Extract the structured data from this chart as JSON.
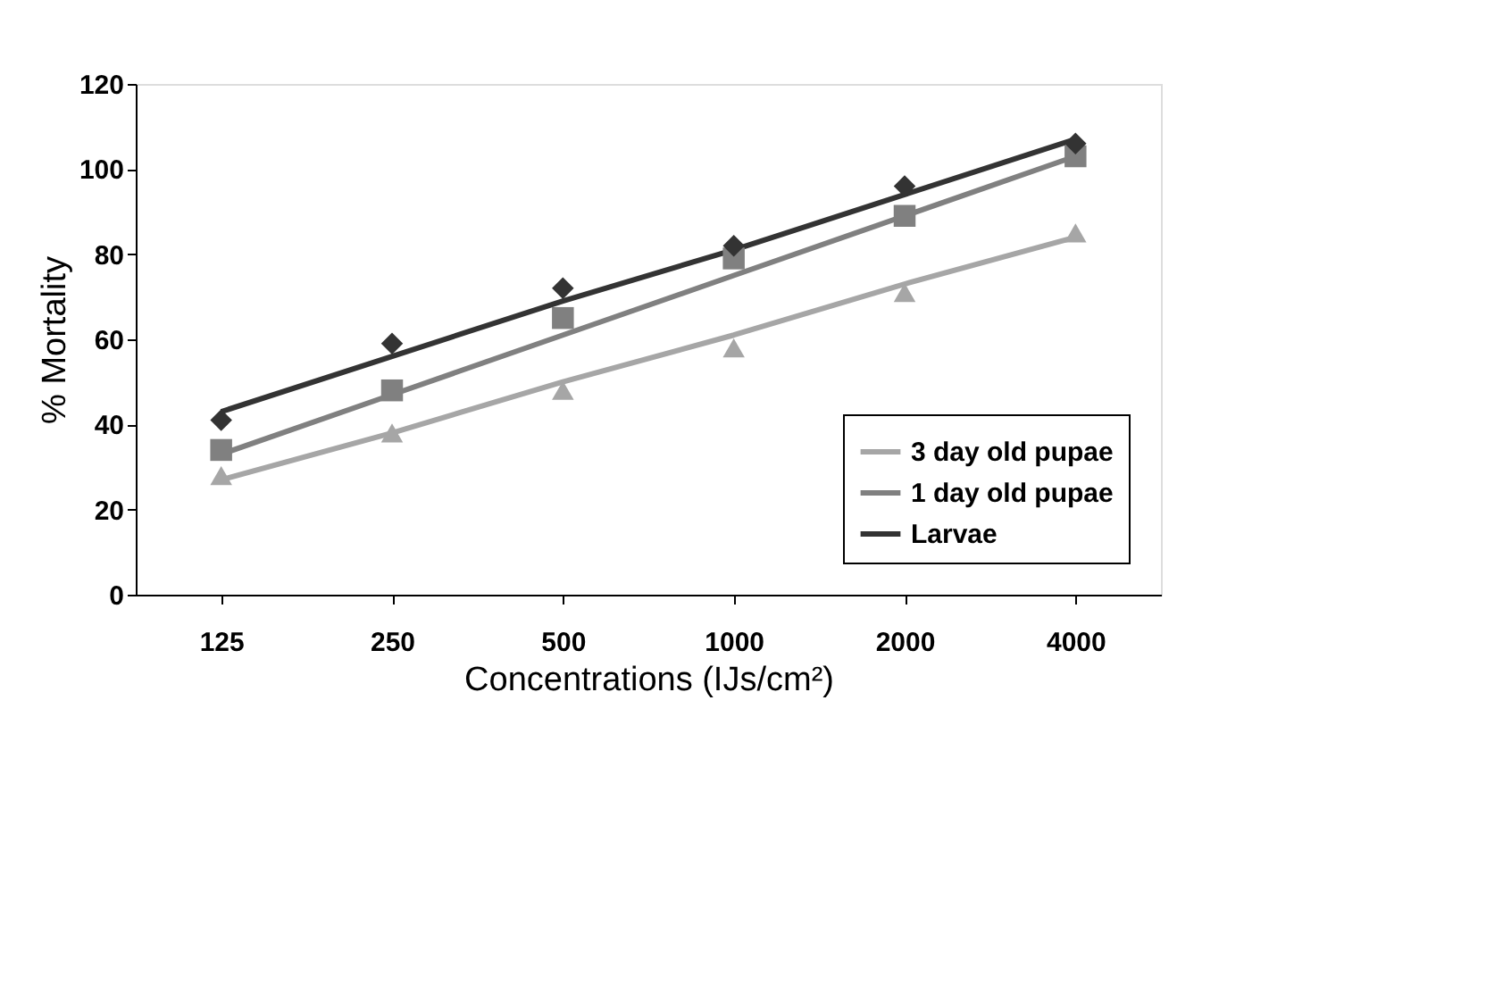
{
  "chart_data": {
    "type": "line",
    "xlabel": "Concentrations (IJs/cm²)",
    "ylabel": "% Mortality",
    "categories": [
      "125",
      "250",
      "500",
      "1000",
      "2000",
      "4000"
    ],
    "ylim": [
      0,
      120
    ],
    "yticks": [
      0,
      20,
      40,
      60,
      80,
      100,
      120
    ],
    "grid": false,
    "legend": "bottom right",
    "line_style": "solid",
    "series": [
      {
        "name": "3 day old pupae",
        "marker": "none",
        "color": "#a6a6a6",
        "values": [
          27,
          38,
          50,
          61,
          73,
          84
        ]
      },
      {
        "name": "1 day old pupae",
        "marker": "none",
        "color": "#808080",
        "values": [
          33,
          47,
          61,
          75,
          89,
          103
        ]
      },
      {
        "name": "Larvae",
        "marker": "none",
        "color": "#333333",
        "values": [
          43,
          56,
          69,
          81,
          94,
          107
        ]
      },
      {
        "type": "scatter",
        "marker": "triangle",
        "color": "#a6a6a6",
        "values": [
          28,
          38,
          48,
          58,
          71,
          85
        ]
      },
      {
        "type": "scatter",
        "marker": "square",
        "color": "#808080",
        "values": [
          34,
          48,
          65,
          79,
          89,
          103
        ]
      },
      {
        "type": "scatter",
        "marker": "diamond",
        "color": "#333333",
        "values": [
          41,
          59,
          72,
          82,
          96,
          106
        ]
      }
    ]
  }
}
